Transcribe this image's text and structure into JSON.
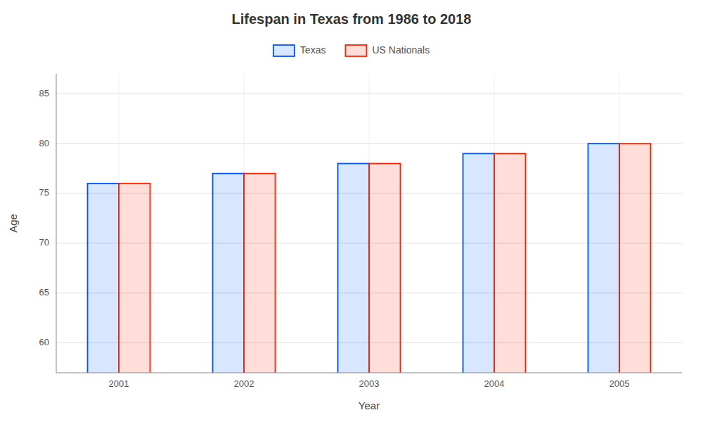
{
  "chart_data": {
    "type": "bar",
    "title": "Lifespan in Texas from 1986 to 2018",
    "xlabel": "Year",
    "ylabel": "Age",
    "categories": [
      "2001",
      "2002",
      "2003",
      "2004",
      "2005"
    ],
    "series": [
      {
        "name": "Texas",
        "color": "#0055ff",
        "values": [
          76,
          77,
          78,
          79,
          80
        ]
      },
      {
        "name": "US Nationals",
        "color": "#ff2200",
        "values": [
          76,
          77,
          78,
          79,
          80
        ]
      }
    ],
    "ylim": [
      57,
      87
    ],
    "yticks": [
      60,
      65,
      70,
      75,
      80,
      85
    ],
    "grid": true,
    "legend": "top"
  }
}
